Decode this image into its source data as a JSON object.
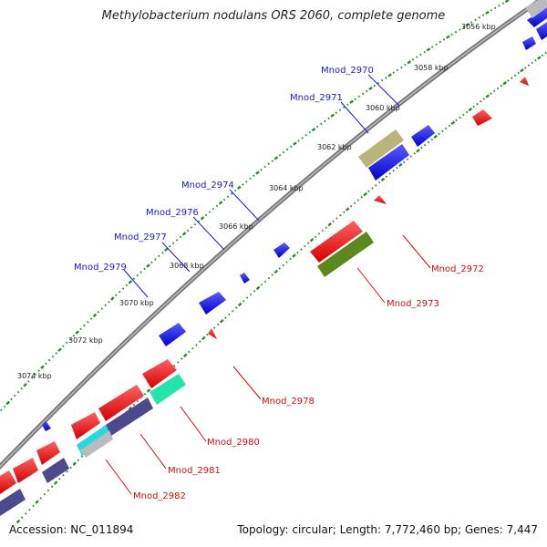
{
  "title": "Methylobacterium nodulans ORS 2060, complete genome",
  "accession": "Accession: NC_011894",
  "summary": "Topology: circular; Length: 7,772,460 bp; Genes: 7,447",
  "ticks": [
    "3056 kbp",
    "3058 kbp",
    "3060 kbp",
    "3062 kbp",
    "3064 kbp",
    "3066 kbp",
    "3068 kbp",
    "3070 kbp",
    "3072 kbp",
    "3074 kbp"
  ],
  "genes_top": [
    "Mnod_2970",
    "Mnod_2971",
    "Mnod_2974",
    "Mnod_2976",
    "Mnod_2977",
    "Mnod_2979"
  ],
  "genes_bottom": [
    "Mnod_2972",
    "Mnod_2973",
    "Mnod_2978",
    "Mnod_2980",
    "Mnod_2981",
    "Mnod_2982"
  ],
  "colors": {
    "forward_cds": "#0000ee",
    "reverse_cds": "#ee0000",
    "rna_olive": "#bbb47a",
    "rna_green": "#5a8a1e",
    "rna_teal": "#22e6a8",
    "rna_cyan": "#22d8e6",
    "rna_slate": "#4a4a8c",
    "rna_gray": "#bbbbbb",
    "tick": "#2a8a2a",
    "backbone": "#888888",
    "top_label": "#1a1acc",
    "bottom_label": "#cc1010"
  }
}
